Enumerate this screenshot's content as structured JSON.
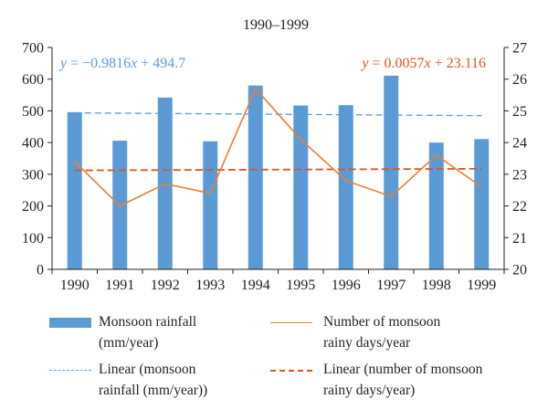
{
  "chart_data": {
    "type": "bar",
    "title": "1990–1999",
    "categories": [
      "1990",
      "1991",
      "1992",
      "1993",
      "1994",
      "1995",
      "1996",
      "1997",
      "1998",
      "1999"
    ],
    "series": [
      {
        "name": "Monsoon rainfall (mm/year)",
        "type": "bar",
        "axis": "left",
        "color": "#5b9bd5",
        "values": [
          496,
          406,
          542,
          404,
          580,
          517,
          518,
          611,
          400,
          411
        ]
      },
      {
        "name": "Number of monsoon rainy days/year",
        "type": "line",
        "axis": "right",
        "color": "#ed7d31",
        "values": [
          23.4,
          22.0,
          22.7,
          22.4,
          25.7,
          24.1,
          22.8,
          22.3,
          23.6,
          22.6
        ]
      }
    ],
    "trendlines": [
      {
        "name": "Linear (monsoon rainfall (mm/year))",
        "axis": "left",
        "color": "#5b9bd5",
        "style": "dashed",
        "slope": -0.9816,
        "intercept": 494.7,
        "equation": "y = −0.9816x + 494.7"
      },
      {
        "name": "Linear (number of monsoon rainy days/year)",
        "axis": "right",
        "color": "#e0531f",
        "style": "dashed",
        "slope": 0.0057,
        "intercept": 23.116,
        "equation": "y = 0.0057x + 23.116"
      }
    ],
    "y_left": {
      "min": 0,
      "max": 700,
      "ticks": [
        "0",
        "100",
        "200",
        "300",
        "400",
        "500",
        "600",
        "700"
      ]
    },
    "y_right": {
      "min": 20,
      "max": 27,
      "ticks": [
        "20",
        "21",
        "22",
        "23",
        "24",
        "25",
        "26",
        "27"
      ]
    },
    "grid": false,
    "legend_placement": "bottom"
  },
  "legend": {
    "bar_line1": "Monsoon rainfall",
    "bar_line2": "(mm/year)",
    "line_line1": "Number of monsoon",
    "line_line2": "rainy days/year",
    "trend1_line1": "Linear (monsoon",
    "trend1_line2": "rainfall (mm/year))",
    "trend2_line1": "Linear (number of monsoon",
    "trend2_line2": "rainy days/year)"
  }
}
